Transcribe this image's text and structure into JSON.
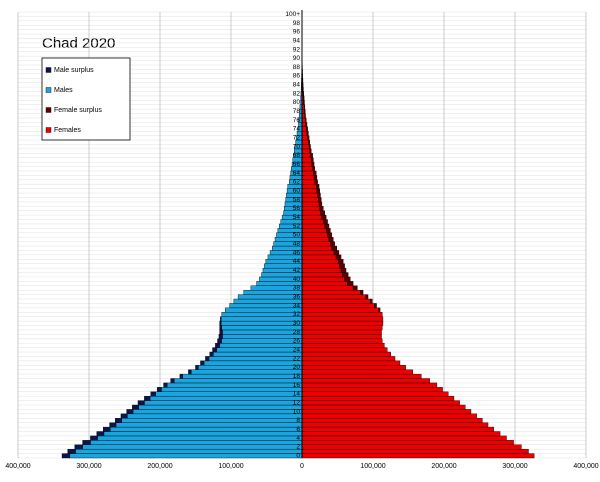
{
  "chart_data": {
    "type": "population-pyramid",
    "title": "Chad 2020",
    "categories": [
      "0",
      null,
      "2",
      null,
      "4",
      null,
      "6",
      null,
      "8",
      null,
      "10",
      null,
      "12",
      null,
      "14",
      null,
      "16",
      null,
      "18",
      null,
      "20",
      null,
      "22",
      null,
      "24",
      null,
      "26",
      null,
      "28",
      null,
      "30",
      null,
      "32",
      null,
      "34",
      null,
      "36",
      null,
      "38",
      null,
      "40",
      null,
      "42",
      null,
      "44",
      null,
      "46",
      null,
      "48",
      null,
      "50",
      null,
      "52",
      null,
      "54",
      null,
      "56",
      null,
      "58",
      null,
      "60",
      null,
      "62",
      null,
      "64",
      null,
      "66",
      null,
      "68",
      null,
      "70",
      null,
      "72",
      null,
      "74",
      null,
      "76",
      null,
      "78",
      null,
      "80",
      null,
      "82",
      null,
      "84",
      null,
      "86",
      null,
      "88",
      null,
      "90",
      null,
      "92",
      null,
      "94",
      null,
      "96",
      null,
      "98",
      null,
      "100+"
    ],
    "series": [
      {
        "name": "Male surplus",
        "color": "#0b1650",
        "values": [
          -11000,
          -11000,
          -11000,
          -11000,
          -10000,
          -10000,
          -10000,
          -9000,
          -9000,
          -9000,
          -9000,
          -9000,
          -9000,
          -8000,
          -7000,
          -6000,
          -5000,
          -5000,
          -4000,
          -4000,
          -4000,
          -5000,
          -5000,
          -5000,
          -6000,
          -6000,
          -6000,
          -5000,
          -4000,
          -3000,
          -2000,
          -1000,
          0,
          0,
          0,
          0,
          0,
          0,
          0,
          0,
          0,
          0,
          0,
          0,
          0,
          0,
          0,
          0,
          0,
          0,
          0,
          0,
          0,
          0,
          0,
          0,
          0,
          0,
          0,
          0,
          0,
          0,
          0,
          0,
          0,
          0,
          0,
          0,
          0,
          0,
          0,
          0,
          0,
          0,
          0,
          0,
          0,
          0,
          0,
          0,
          0,
          0,
          0,
          0,
          0,
          0,
          0,
          0,
          0,
          0,
          0,
          0,
          0,
          0,
          0,
          0,
          0,
          0,
          0,
          0,
          0
        ]
      },
      {
        "name": "Males",
        "color": "#1aa5e0",
        "values": [
          -327000,
          -319000,
          -309000,
          -298000,
          -288000,
          -279000,
          -270000,
          -262000,
          -254000,
          -246000,
          -238000,
          -230000,
          -222000,
          -214000,
          -206000,
          -198000,
          -190000,
          -180000,
          -168000,
          -156000,
          -146000,
          -138000,
          -131000,
          -125000,
          -120000,
          -116000,
          -113000,
          -112000,
          -112000,
          -113000,
          -114000,
          -114000,
          -113000,
          -108000,
          -102000,
          -96000,
          -90000,
          -82000,
          -72000,
          -64000,
          -60000,
          -57000,
          -55000,
          -53000,
          -51000,
          -48000,
          -45000,
          -42000,
          -40000,
          -38000,
          -36000,
          -34000,
          -32000,
          -30000,
          -28000,
          -26000,
          -25000,
          -24000,
          -23000,
          -22000,
          -21000,
          -20000,
          -18000,
          -17000,
          -16000,
          -15000,
          -14000,
          -13000,
          -12000,
          -11000,
          -10000,
          -9000,
          -8000,
          -7000,
          -6000,
          -5000,
          -5000,
          -4000,
          -3000,
          -3000,
          -2000,
          -2000,
          -1500,
          -1200,
          -1000,
          -800,
          -600,
          -500,
          -300,
          -200,
          -200,
          -100,
          0,
          0,
          0,
          0,
          0,
          0,
          0,
          0,
          0
        ]
      },
      {
        "name": "Female surplus",
        "color": "#5c0000",
        "values": [
          0,
          0,
          0,
          0,
          0,
          0,
          0,
          0,
          0,
          0,
          0,
          0,
          0,
          0,
          0,
          0,
          0,
          0,
          0,
          0,
          0,
          0,
          0,
          0,
          0,
          0,
          0,
          0,
          0,
          0,
          0,
          0,
          0,
          2000,
          3000,
          3000,
          3000,
          4000,
          6000,
          8000,
          8000,
          8000,
          7000,
          7000,
          7000,
          7000,
          7000,
          7000,
          6000,
          6000,
          6000,
          6000,
          6000,
          6000,
          6000,
          6000,
          5000,
          4000,
          4000,
          4000,
          4000,
          4000,
          4000,
          4000,
          4000,
          3000,
          3000,
          3000,
          3000,
          2000,
          2000,
          2000,
          2000,
          2000,
          2000,
          2000,
          1000,
          1000,
          1500,
          1000,
          1500,
          1000,
          1000,
          800,
          600,
          500,
          400,
          300,
          300,
          200,
          100,
          100,
          150,
          100,
          70,
          50,
          30,
          20,
          10,
          10,
          0
        ]
      },
      {
        "name": "Females",
        "color": "#ee0000",
        "values": [
          327000,
          319000,
          309000,
          298000,
          288000,
          279000,
          270000,
          262000,
          254000,
          246000,
          238000,
          230000,
          222000,
          214000,
          206000,
          198000,
          190000,
          180000,
          168000,
          156000,
          146000,
          138000,
          131000,
          125000,
          120000,
          116000,
          113000,
          112000,
          112000,
          113000,
          114000,
          114000,
          113000,
          108000,
          102000,
          96000,
          90000,
          82000,
          72000,
          64000,
          60000,
          57000,
          55000,
          53000,
          51000,
          48000,
          45000,
          42000,
          40000,
          38000,
          36000,
          34000,
          32000,
          30000,
          28000,
          26000,
          25000,
          24000,
          23000,
          22000,
          21000,
          20000,
          18000,
          17000,
          16000,
          15000,
          14000,
          13000,
          12000,
          11000,
          10000,
          9000,
          8000,
          7000,
          6000,
          5000,
          5000,
          4000,
          3000,
          3000,
          2000,
          2000,
          1500,
          1200,
          1000,
          800,
          600,
          500,
          300,
          200,
          200,
          100,
          0,
          0,
          0,
          0,
          0,
          0,
          0,
          0,
          0
        ]
      }
    ],
    "xlim": [
      -400000,
      400000
    ],
    "xticks": [
      {
        "value": -400000,
        "label": "400,000"
      },
      {
        "value": -300000,
        "label": "300,000"
      },
      {
        "value": -200000,
        "label": "200,000"
      },
      {
        "value": -100000,
        "label": "100,000"
      },
      0,
      {
        "value": 100000,
        "label": "100,000"
      },
      {
        "value": 200000,
        "label": "200,000"
      },
      {
        "value": 300000,
        "label": "300,000"
      },
      {
        "value": 400000,
        "label": "400,000"
      }
    ],
    "grid": true,
    "legend": "upper-left"
  }
}
